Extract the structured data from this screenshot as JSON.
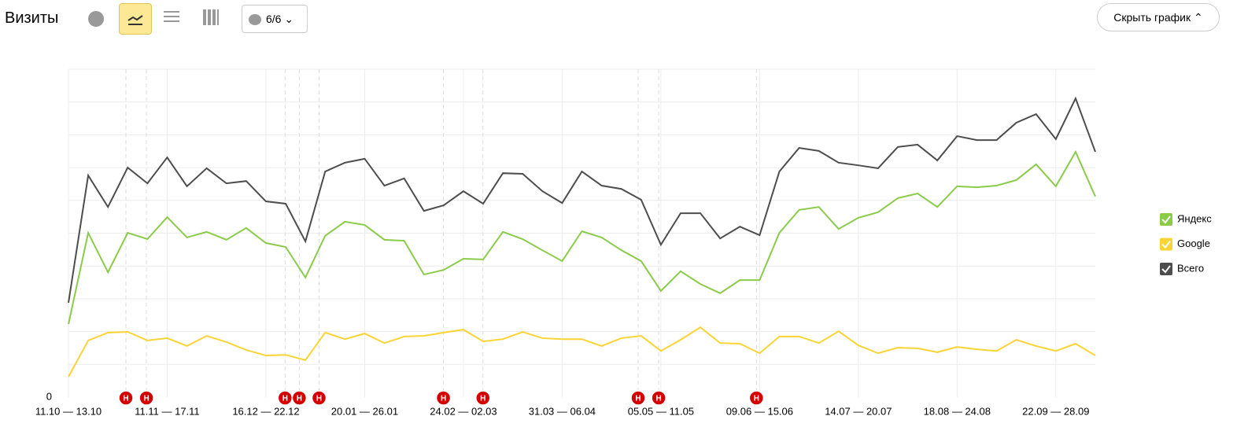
{
  "header": {
    "title": "Визиты",
    "filter_button": "6/6",
    "hide_button": "Скрыть график"
  },
  "chart_data": {
    "type": "line",
    "categories": [
      "11.10 — 13.10",
      null,
      null,
      null,
      null,
      "11.11 — 17.11",
      null,
      null,
      null,
      null,
      "16.12 — 22.12",
      null,
      null,
      null,
      null,
      "20.01 — 26.01",
      null,
      null,
      null,
      null,
      "24.02 — 02.03",
      null,
      null,
      null,
      null,
      "31.03 — 06.04",
      null,
      null,
      null,
      null,
      "05.05 — 11.05",
      null,
      null,
      null,
      null,
      "09.06 — 15.06",
      null,
      null,
      null,
      null,
      "14.07 — 20.07",
      null,
      null,
      null,
      null,
      "18.08 — 24.08",
      null,
      null,
      null,
      null,
      "22.09 — 28.09",
      null,
      null
    ],
    "series": [
      {
        "name": "Яндекс",
        "color": "#8bcb4a",
        "values": [
          2.23,
          5.01,
          3.81,
          5.01,
          4.82,
          5.49,
          4.87,
          5.04,
          4.8,
          5.16,
          4.7,
          4.58,
          3.65,
          4.92,
          5.35,
          5.25,
          4.8,
          4.77,
          3.74,
          3.88,
          4.22,
          4.2,
          5.04,
          4.82,
          4.48,
          4.15,
          5.06,
          4.87,
          4.48,
          4.15,
          3.24,
          3.84,
          3.45,
          3.17,
          3.57,
          3.57,
          5.01,
          5.71,
          5.8,
          5.13,
          5.47,
          5.64,
          6.07,
          6.21,
          5.8,
          6.43,
          6.4,
          6.45,
          6.62,
          7.1,
          6.43,
          7.48,
          6.12
        ]
      },
      {
        "name": "Google",
        "color": "#fad434",
        "values": [
          0.62,
          1.73,
          1.97,
          1.99,
          1.73,
          1.8,
          1.56,
          1.87,
          1.68,
          1.44,
          1.27,
          1.29,
          1.13,
          1.97,
          1.77,
          1.94,
          1.65,
          1.85,
          1.87,
          1.97,
          2.06,
          1.7,
          1.77,
          1.99,
          1.8,
          1.77,
          1.77,
          1.56,
          1.8,
          1.87,
          1.41,
          1.75,
          2.13,
          1.65,
          1.63,
          1.34,
          1.85,
          1.85,
          1.65,
          2.01,
          1.58,
          1.34,
          1.51,
          1.49,
          1.37,
          1.53,
          1.46,
          1.41,
          1.75,
          1.56,
          1.41,
          1.63,
          1.27
        ]
      },
      {
        "name": "Всего",
        "color": "#4d4d4d",
        "values": [
          2.88,
          6.76,
          5.8,
          7.0,
          6.52,
          7.31,
          6.43,
          6.98,
          6.52,
          6.59,
          5.97,
          5.9,
          4.75,
          6.88,
          7.15,
          7.27,
          6.45,
          6.67,
          5.68,
          5.85,
          6.28,
          5.9,
          6.83,
          6.81,
          6.28,
          5.92,
          6.88,
          6.45,
          6.35,
          6.02,
          4.65,
          5.61,
          5.61,
          4.84,
          5.2,
          4.94,
          6.88,
          7.6,
          7.51,
          7.15,
          7.07,
          6.98,
          7.63,
          7.7,
          7.22,
          7.96,
          7.84,
          7.84,
          8.37,
          8.63,
          7.87,
          9.11,
          7.48
        ]
      }
    ],
    "ylim": [
      0,
      10
    ],
    "yticks": [
      0
    ],
    "ygrid": [
      1,
      2,
      3,
      4,
      5,
      6,
      7,
      8,
      9,
      10
    ],
    "grid": true,
    "legend": "right",
    "notes": [
      {
        "label": "Н",
        "x": 2.91
      },
      {
        "label": "Н",
        "x": 3.95
      },
      {
        "label": "Н",
        "x": 10.97
      },
      {
        "label": "Н",
        "x": 11.69
      },
      {
        "label": "Н",
        "x": 12.69
      },
      {
        "label": "Н",
        "x": 18.99
      },
      {
        "label": "Н",
        "x": 20.99
      },
      {
        "label": "Н",
        "x": 28.85
      },
      {
        "label": "Н",
        "x": 29.89
      },
      {
        "label": "Н",
        "x": 34.84
      }
    ]
  }
}
